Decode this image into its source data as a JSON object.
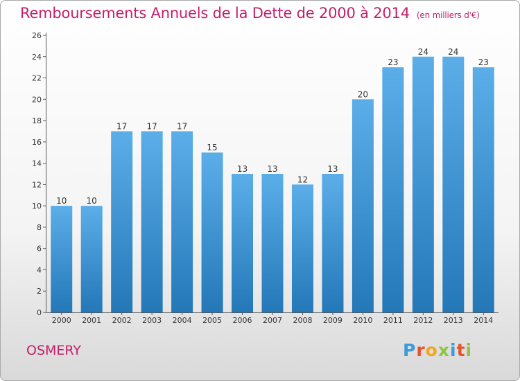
{
  "title": "Remboursements Annuels de la Dette de 2000 à 2014",
  "subtitle": "(en milliers d'€)",
  "place": "OSMERY",
  "logo": {
    "text": "Proxiti",
    "colors": [
      "#3b9ad9",
      "#e8522b",
      "#f2a71c",
      "#8cc63f",
      "#3b9ad9",
      "#e8522b",
      "#8cc63f"
    ]
  },
  "colors": {
    "title": "#c41f6a",
    "bar_top": "#5baee8",
    "bar_bottom": "#2478b8",
    "axis": "#555555"
  },
  "chart_data": {
    "type": "bar",
    "title": "Remboursements Annuels de la Dette de 2000 à 2014",
    "subtitle": "(en milliers d'€)",
    "categories": [
      "2000",
      "2001",
      "2002",
      "2003",
      "2004",
      "2005",
      "2006",
      "2007",
      "2008",
      "2009",
      "2010",
      "2011",
      "2012",
      "2013",
      "2014"
    ],
    "values": [
      10,
      10,
      17,
      17,
      17,
      15,
      13,
      13,
      12,
      13,
      20,
      23,
      24,
      24,
      23
    ],
    "xlabel": "",
    "ylabel": "",
    "ylim": [
      0,
      26
    ],
    "yticks": [
      0,
      2,
      4,
      6,
      8,
      10,
      12,
      14,
      16,
      18,
      20,
      22,
      24,
      26
    ],
    "grid": false,
    "data_labels": true
  }
}
